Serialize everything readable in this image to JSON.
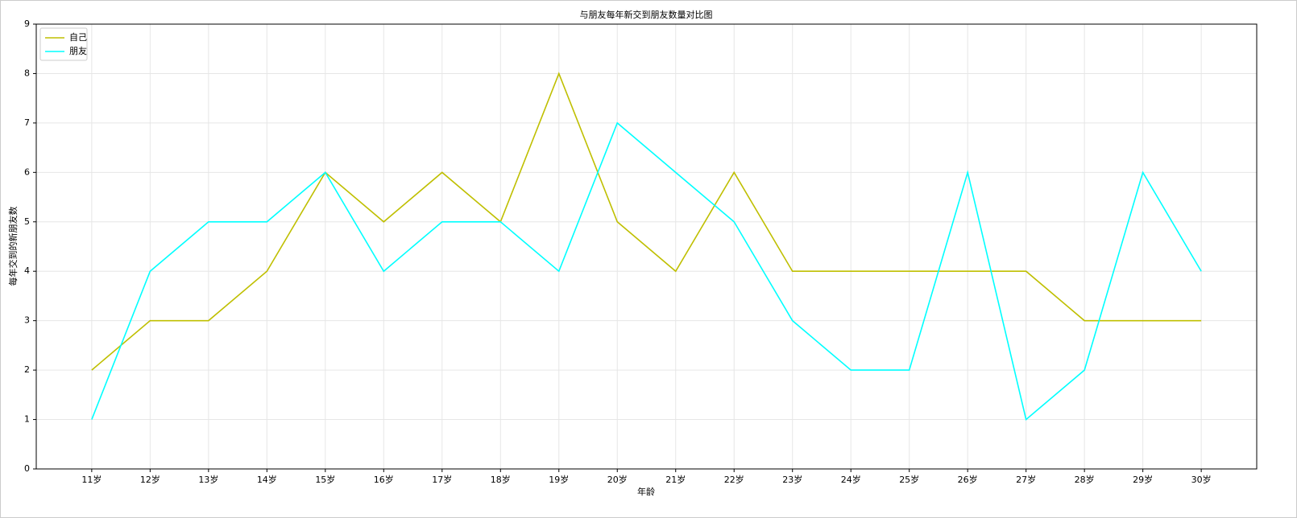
{
  "chart_data": {
    "type": "line",
    "title": "与朋友每年新交到朋友数量对比图",
    "x_label": "年龄",
    "y_label": "每年交到的新朋友数",
    "categories": [
      "11岁",
      "12岁",
      "13岁",
      "14岁",
      "15岁",
      "16岁",
      "17岁",
      "18岁",
      "19岁",
      "20岁",
      "21岁",
      "22岁",
      "23岁",
      "24岁",
      "25岁",
      "26岁",
      "27岁",
      "28岁",
      "29岁",
      "30岁"
    ],
    "series": [
      {
        "name": "自己",
        "color": "#bfbf00",
        "values": [
          2,
          3,
          3,
          4,
          6,
          5,
          6,
          5,
          8,
          5,
          4,
          6,
          4,
          4,
          4,
          4,
          4,
          3,
          3,
          3
        ]
      },
      {
        "name": "朋友",
        "color": "#00ffff",
        "values": [
          1,
          4,
          5,
          5,
          6,
          4,
          5,
          5,
          4,
          7,
          6,
          5,
          3,
          2,
          2,
          6,
          1,
          2,
          6,
          4
        ]
      }
    ],
    "ylim": [
      0,
      9
    ],
    "yticks": [
      0,
      1,
      2,
      3,
      4,
      5,
      6,
      7,
      8,
      9
    ],
    "grid": true,
    "legend": "upper-left"
  }
}
